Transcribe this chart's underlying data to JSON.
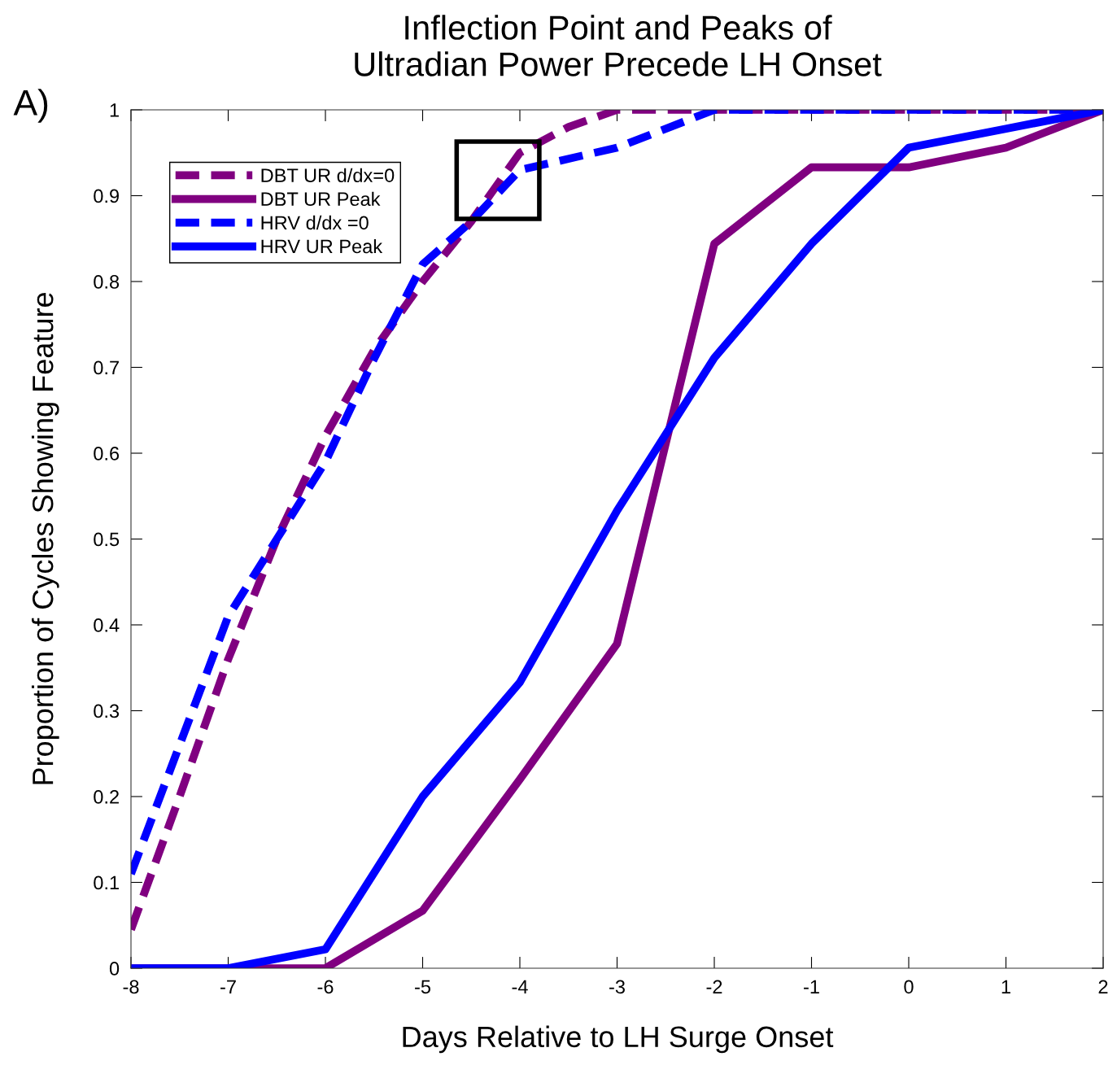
{
  "chart_data": {
    "type": "line",
    "title": "Inflection Point and Peaks of\nUltradian Power Precede LH Onset",
    "xlabel": "Days Relative to LH Surge Onset",
    "ylabel": "Proportion of Cycles Showing Feature",
    "annotations": [
      "A)"
    ],
    "series": [
      {
        "name": "DBT UR d/dx=0",
        "color": "#800080",
        "line_style": "dashed",
        "x": [
          -8,
          -7.5,
          -7,
          -6.5,
          -6,
          -5.5,
          -5,
          -4.5,
          -4,
          -3.5,
          -3,
          -2,
          -1,
          0,
          1,
          2
        ],
        "values": [
          0.045,
          0.2,
          0.36,
          0.5,
          0.62,
          0.72,
          0.8,
          0.87,
          0.95,
          0.98,
          1.0,
          1.0,
          1.0,
          1.0,
          1.0,
          1.0
        ]
      },
      {
        "name": "DBT UR Peak",
        "color": "#800080",
        "line_style": "solid",
        "x": [
          -8,
          -7,
          -6,
          -5,
          -4,
          -3,
          -2,
          -1,
          0,
          1,
          2
        ],
        "values": [
          0,
          0,
          0,
          0.067,
          0.22,
          0.378,
          0.844,
          0.933,
          0.933,
          0.956,
          1.0
        ]
      },
      {
        "name": "HRV d/dx =0",
        "color": "#0000ff",
        "line_style": "dashed",
        "x": [
          -8,
          -7.5,
          -7,
          -6.5,
          -6,
          -5.5,
          -5,
          -4.5,
          -4,
          -3,
          -2,
          -1,
          0,
          1,
          2
        ],
        "values": [
          0.11,
          0.26,
          0.41,
          0.5,
          0.59,
          0.71,
          0.82,
          0.87,
          0.93,
          0.956,
          1.0,
          1.0,
          1.0,
          1.0,
          1.0
        ]
      },
      {
        "name": "HRV UR Peak",
        "color": "#0000ff",
        "line_style": "solid",
        "x": [
          -8,
          -7,
          -6,
          -5,
          -4,
          -3,
          -2,
          -1,
          0,
          1,
          2
        ],
        "values": [
          0,
          0,
          0.022,
          0.2,
          0.333,
          0.533,
          0.711,
          0.844,
          0.956,
          0.978,
          1.0
        ]
      }
    ],
    "xlim": [
      -8,
      2
    ],
    "xticks": [
      -8,
      -7,
      -6,
      -5,
      -4,
      -3,
      -2,
      -1,
      0,
      1,
      2
    ],
    "ylim": [
      0,
      1
    ],
    "yticks": [
      0,
      0.1,
      0.2,
      0.3,
      0.4,
      0.5,
      0.6,
      0.7,
      0.8,
      0.9,
      1
    ],
    "grid": false,
    "legend": "top left",
    "marker": "none"
  }
}
